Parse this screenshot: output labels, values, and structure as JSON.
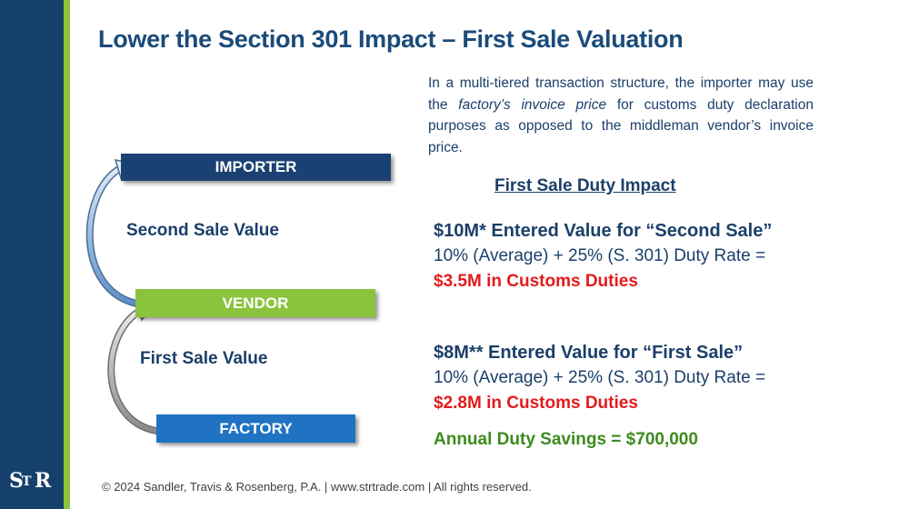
{
  "title": "Lower the Section 301 Impact – First Sale Valuation",
  "intro": {
    "before": "In a multi-tiered transaction structure, the importer may use the ",
    "emphasis": "factory’s invoice price",
    "after": " for customs duty declaration purposes as opposed to the middleman vendor’s invoice price."
  },
  "diagram": {
    "importer": "IMPORTER",
    "vendor": "VENDOR",
    "factory": "FACTORY",
    "second_sale_label": "Second Sale Value",
    "first_sale_label": "First Sale Value"
  },
  "impact": {
    "heading": "First Sale Duty Impact",
    "second_sale": {
      "entered": "$10M* Entered Value for “Second Sale”",
      "rate": "10% (Average) + 25% (S. 301) Duty Rate =",
      "duties": "$3.5M in Customs Duties"
    },
    "first_sale": {
      "entered": "$8M** Entered Value for “First Sale”",
      "rate": "10% (Average) + 25% (S. 301) Duty Rate =",
      "duties": "$2.8M in Customs Duties"
    },
    "savings": "Annual Duty Savings = $700,000"
  },
  "footer": "© 2024 Sandler, Travis & Rosenberg, P.A.  |   www.strtrade.com  |   All rights reserved.",
  "logo": {
    "s": "S",
    "t": "T",
    "r": "R"
  },
  "colors": {
    "navy": "#15406c",
    "green": "#8ac43f",
    "blue": "#1f73c2",
    "red": "#e31b1b",
    "savings_green": "#3d8b1f"
  }
}
